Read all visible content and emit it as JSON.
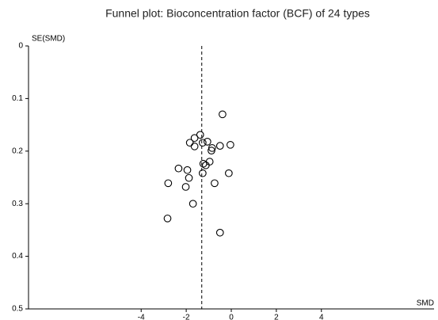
{
  "chart_data": {
    "type": "scatter",
    "title": "Funnel plot: Bioconcentration factor (BCF) of 24 types",
    "x_label": "SMD",
    "y_label": "SE(SMD)",
    "xlim": [
      -9,
      9
    ],
    "ylim": [
      0,
      0.5
    ],
    "y_reversed": true,
    "xticks": [
      -4,
      -2,
      0,
      2,
      4
    ],
    "yticks": [
      0,
      0.1,
      0.2,
      0.3,
      0.4,
      0.5
    ],
    "reference_line": -1.31,
    "color": "#000000",
    "x": [
      -0.39,
      -1.38,
      -1.63,
      -1.84,
      -1.27,
      -1.06,
      -1.63,
      -0.85,
      -0.88,
      -0.5,
      -0.04,
      -0.96,
      -1.24,
      -1.13,
      -2.34,
      -1.95,
      -1.27,
      -0.11,
      -1.88,
      -2.8,
      -0.74,
      -2.02,
      -1.7,
      -2.83,
      -0.5
    ],
    "values": [
      0.13,
      0.169,
      0.175,
      0.184,
      0.184,
      0.182,
      0.191,
      0.194,
      0.199,
      0.19,
      0.188,
      0.22,
      0.224,
      0.227,
      0.233,
      0.236,
      0.242,
      0.242,
      0.251,
      0.261,
      0.261,
      0.268,
      0.3,
      0.328,
      0.355
    ]
  }
}
